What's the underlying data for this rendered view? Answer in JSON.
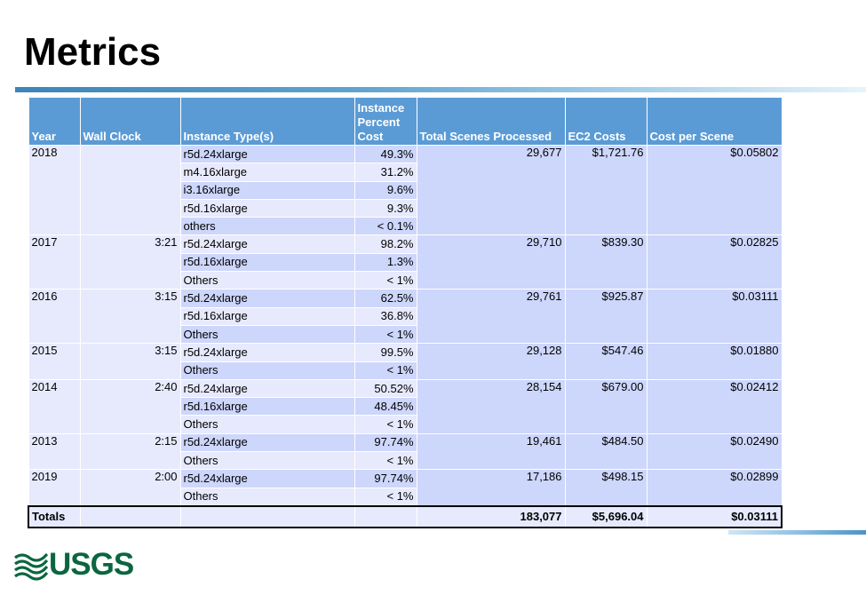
{
  "title": "Metrics",
  "logo_text": "USGS",
  "colors": {
    "header": "#5b9bd5",
    "row_dark": "#cdd6fb",
    "row_light": "#e7eafd",
    "logo": "#0b6640"
  },
  "headers": {
    "year": "Year",
    "wall_clock": "Wall Clock",
    "instance_types": "Instance Type(s)",
    "instance_percent_1": "Instance",
    "instance_percent_2": "Percent",
    "instance_percent_3": "Cost",
    "total_scenes": "Total Scenes Processed",
    "ec2_costs": "EC2 Costs",
    "cost_per_scene": "Cost per Scene"
  },
  "groups": [
    {
      "year": "2018",
      "wall_clock": "",
      "scenes": "29,677",
      "ec2": "$1,721.76",
      "cps": "$0.05802",
      "instances": [
        {
          "type": "r5d.24xlarge",
          "pct": "49.3%"
        },
        {
          "type": "m4.16xlarge",
          "pct": "31.2%"
        },
        {
          "type": "i3.16xlarge",
          "pct": "9.6%"
        },
        {
          "type": "r5d.16xlarge",
          "pct": "9.3%"
        },
        {
          "type": "others",
          "pct": "< 0.1%"
        }
      ]
    },
    {
      "year": "2017",
      "wall_clock": "3:21",
      "scenes": "29,710",
      "ec2": "$839.30",
      "cps": "$0.02825",
      "instances": [
        {
          "type": "r5d.24xlarge",
          "pct": "98.2%"
        },
        {
          "type": "r5d.16xlarge",
          "pct": "1.3%"
        },
        {
          "type": "Others",
          "pct": "< 1%"
        }
      ]
    },
    {
      "year": "2016",
      "wall_clock": "3:15",
      "scenes": "29,761",
      "ec2": "$925.87",
      "cps": "$0.03111",
      "instances": [
        {
          "type": "r5d.24xlarge",
          "pct": "62.5%"
        },
        {
          "type": "r5d.16xlarge",
          "pct": "36.8%"
        },
        {
          "type": "Others",
          "pct": "< 1%"
        }
      ]
    },
    {
      "year": "2015",
      "wall_clock": "3:15",
      "scenes": "29,128",
      "ec2": "$547.46",
      "cps": "$0.01880",
      "instances": [
        {
          "type": "r5d.24xlarge",
          "pct": "99.5%"
        },
        {
          "type": "Others",
          "pct": "< 1%"
        }
      ]
    },
    {
      "year": "2014",
      "wall_clock": "2:40",
      "scenes": "28,154",
      "ec2": "$679.00",
      "cps": "$0.02412",
      "instances": [
        {
          "type": "r5d.24xlarge",
          "pct": "50.52%"
        },
        {
          "type": "r5d.16xlarge",
          "pct": "48.45%"
        },
        {
          "type": "Others",
          "pct": "< 1%"
        }
      ]
    },
    {
      "year": "2013",
      "wall_clock": "2:15",
      "scenes": "19,461",
      "ec2": "$484.50",
      "cps": "$0.02490",
      "instances": [
        {
          "type": "r5d.24xlarge",
          "pct": "97.74%"
        },
        {
          "type": "Others",
          "pct": "< 1%"
        }
      ]
    },
    {
      "year": "2019",
      "wall_clock": "2:00",
      "scenes": "17,186",
      "ec2": "$498.15",
      "cps": "$0.02899",
      "instances": [
        {
          "type": "r5d.24xlarge",
          "pct": "97.74%"
        },
        {
          "type": "Others",
          "pct": "< 1%"
        }
      ]
    }
  ],
  "totals": {
    "label": "Totals",
    "scenes": "183,077",
    "ec2": "$5,696.04",
    "cps": "$0.03111"
  }
}
